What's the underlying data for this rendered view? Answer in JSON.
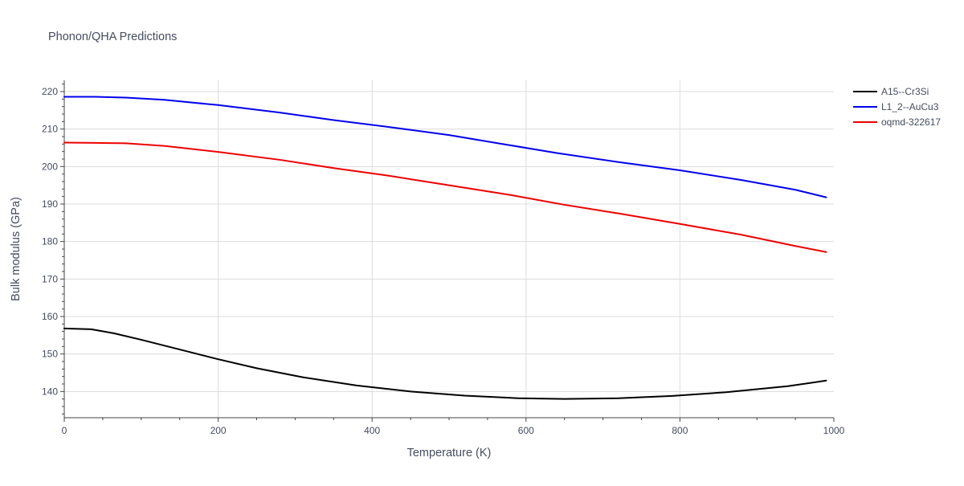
{
  "chart_data": {
    "type": "line",
    "title": "Phonon/QHA Predictions",
    "xlabel": "Temperature (K)",
    "ylabel": "Bulk modulus (GPa)",
    "xlim": [
      0,
      1000
    ],
    "ylim": [
      133,
      223
    ],
    "x_ticks": [
      0,
      200,
      400,
      600,
      800,
      1000
    ],
    "y_ticks": [
      140,
      150,
      160,
      170,
      180,
      190,
      200,
      210,
      220
    ],
    "grid": true,
    "legend_position": "top-right",
    "series": [
      {
        "name": "A15--Cr3Si",
        "color": "#000000",
        "x": [
          0,
          35,
          65,
          100,
          150,
          200,
          250,
          310,
          380,
          450,
          520,
          590,
          650,
          720,
          790,
          860,
          940,
          990
        ],
        "y": [
          156.8,
          156.6,
          155.5,
          153.8,
          151.2,
          148.6,
          146.2,
          143.8,
          141.6,
          140.0,
          138.9,
          138.2,
          138.0,
          138.2,
          138.8,
          139.8,
          141.4,
          142.9
        ]
      },
      {
        "name": "L1_2--AuCu3",
        "color": "#0000ee",
        "x": [
          0,
          40,
          80,
          130,
          200,
          280,
          350,
          420,
          500,
          570,
          640,
          720,
          800,
          880,
          950,
          990
        ],
        "y": [
          218.6,
          218.6,
          218.4,
          217.8,
          216.4,
          214.4,
          212.4,
          210.6,
          208.4,
          206.0,
          203.6,
          201.2,
          199.0,
          196.4,
          193.8,
          191.8
        ]
      },
      {
        "name": "oqmd-322617",
        "color": "#ee0000",
        "x": [
          0,
          40,
          80,
          130,
          200,
          280,
          350,
          420,
          500,
          580,
          650,
          720,
          800,
          880,
          950,
          990
        ],
        "y": [
          206.4,
          206.3,
          206.2,
          205.5,
          203.9,
          201.8,
          199.6,
          197.6,
          195.0,
          192.4,
          189.8,
          187.5,
          184.7,
          181.8,
          178.8,
          177.2
        ]
      }
    ]
  }
}
